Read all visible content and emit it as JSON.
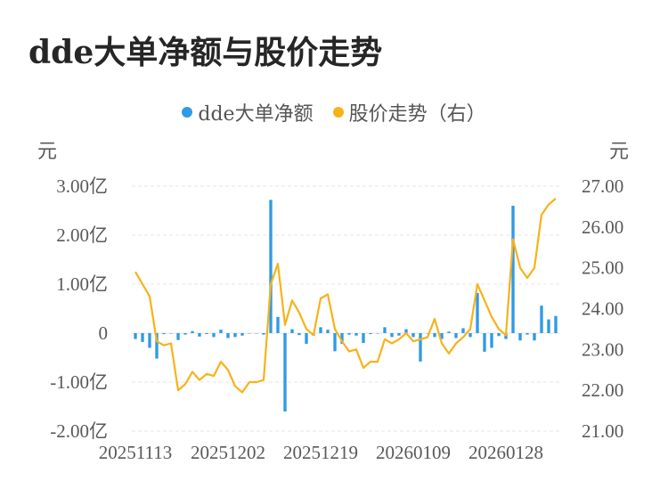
{
  "title": "dde大单净额与股价走势",
  "legend": {
    "series1": "dde大单净额",
    "series2": "股价走势（右）"
  },
  "colors": {
    "bar": "#2f9ae6",
    "line": "#f7b21a",
    "grid": "#e6e6e6"
  },
  "chart_data": {
    "type": "bar+line",
    "title": "dde大单净额与股价走势",
    "y_left_unit": "元",
    "y_right_unit": "元",
    "y_left_ticks": [
      "3.00亿",
      "2.00亿",
      "1.00亿",
      "0",
      "-1.00亿",
      "-2.00亿"
    ],
    "y_left_tick_values": [
      3,
      2,
      1,
      0,
      -1,
      -2
    ],
    "y_right_ticks": [
      "27.00",
      "26.00",
      "25.00",
      "24.00",
      "23.00",
      "22.00",
      "21.00"
    ],
    "y_right_tick_values": [
      27,
      26,
      25,
      24,
      23,
      22,
      21
    ],
    "ylim_left": [
      -2,
      3
    ],
    "ylim_right": [
      21,
      27
    ],
    "x_tick_labels": [
      "20251113",
      "20251202",
      "20251219",
      "20260109",
      "20260128"
    ],
    "x_tick_index": [
      0,
      13,
      26,
      39,
      52
    ],
    "n_points": 60,
    "series": [
      {
        "name": "dde大单净额",
        "axis": "left",
        "unit": "亿",
        "values": [
          -0.12,
          -0.18,
          -0.3,
          -0.52,
          -0.02,
          0.0,
          -0.14,
          -0.03,
          0.04,
          -0.07,
          -0.02,
          -0.08,
          0.07,
          -0.1,
          -0.08,
          -0.05,
          0.0,
          0.0,
          -0.03,
          2.72,
          0.33,
          -1.6,
          0.08,
          -0.04,
          -0.22,
          -0.05,
          0.12,
          0.07,
          -0.37,
          -0.22,
          -0.03,
          -0.05,
          -0.2,
          -0.02,
          0.0,
          0.12,
          -0.08,
          -0.05,
          0.08,
          -0.08,
          -0.58,
          0.0,
          -0.08,
          -0.12,
          0.03,
          -0.1,
          0.1,
          -0.08,
          0.82,
          -0.38,
          -0.3,
          -0.06,
          -0.12,
          2.6,
          -0.15,
          -0.03,
          -0.15,
          0.56,
          0.28,
          0.35
        ]
      },
      {
        "name": "股价走势（右）",
        "axis": "right",
        "values": [
          24.9,
          24.6,
          24.3,
          23.2,
          23.1,
          23.15,
          22.0,
          22.15,
          22.45,
          22.25,
          22.4,
          22.35,
          22.7,
          22.5,
          22.1,
          21.95,
          22.2,
          22.2,
          22.25,
          24.6,
          25.1,
          23.6,
          24.2,
          23.9,
          23.5,
          23.35,
          24.25,
          24.35,
          23.5,
          23.2,
          22.95,
          23.0,
          22.55,
          22.7,
          22.7,
          23.25,
          23.15,
          23.25,
          23.4,
          23.2,
          23.25,
          23.3,
          23.75,
          23.15,
          22.9,
          23.15,
          23.3,
          23.5,
          24.6,
          24.2,
          23.8,
          23.5,
          23.35,
          25.7,
          25.0,
          24.75,
          25.0,
          26.3,
          26.55,
          26.7
        ]
      }
    ],
    "grid": true,
    "legend_position": "top-center"
  }
}
